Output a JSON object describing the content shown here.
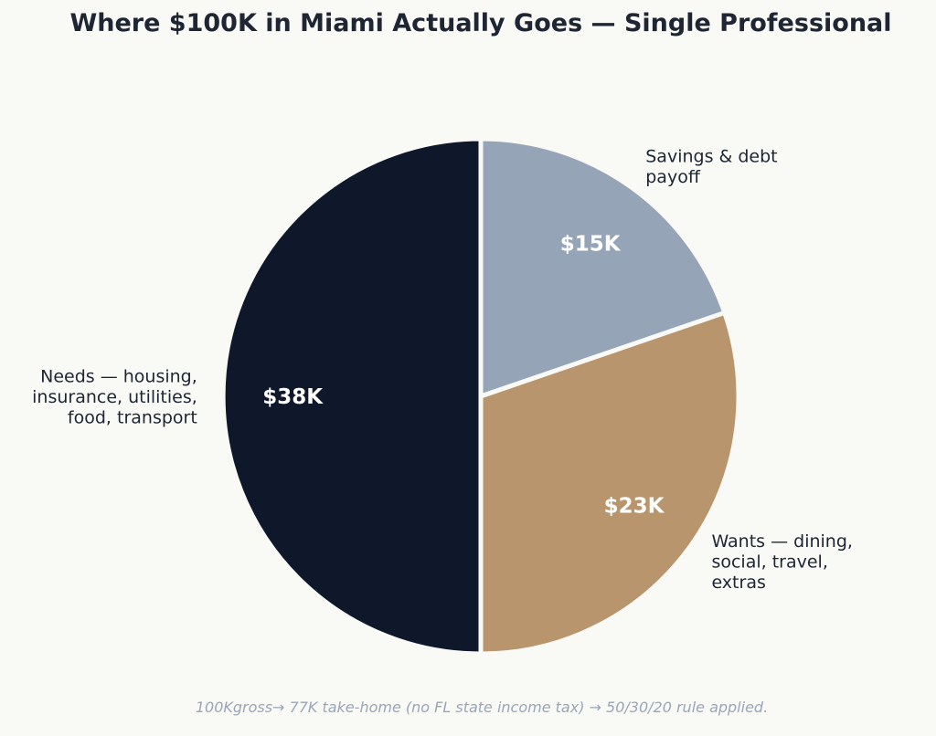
{
  "title": "Where $100K in Miami Actually Goes — Single Professional",
  "caption": "100Kgross→ 77K take-home (no FL state income tax) → 50/30/20 rule applied.",
  "chart_data": {
    "type": "pie",
    "start_angle_deg": 90,
    "direction": "clockwise",
    "slices": [
      {
        "label": "Savings & debt payoff",
        "label_lines": [
          "Savings & debt",
          "payoff"
        ],
        "value": 15,
        "value_label": "$15K",
        "color": "#96a4b8"
      },
      {
        "label": "Wants — dining, social, travel, extras",
        "label_lines": [
          "Wants — dining,",
          "social, travel,",
          "extras"
        ],
        "value": 23,
        "value_label": "$23K",
        "color": "#b8956c"
      },
      {
        "label": "Needs — housing, insurance, utilities, food, transport",
        "label_lines": [
          "Needs — housing,",
          "insurance, utilities,",
          "food, transport"
        ],
        "value": 38,
        "value_label": "$38K",
        "color": "#0f172a"
      }
    ]
  }
}
